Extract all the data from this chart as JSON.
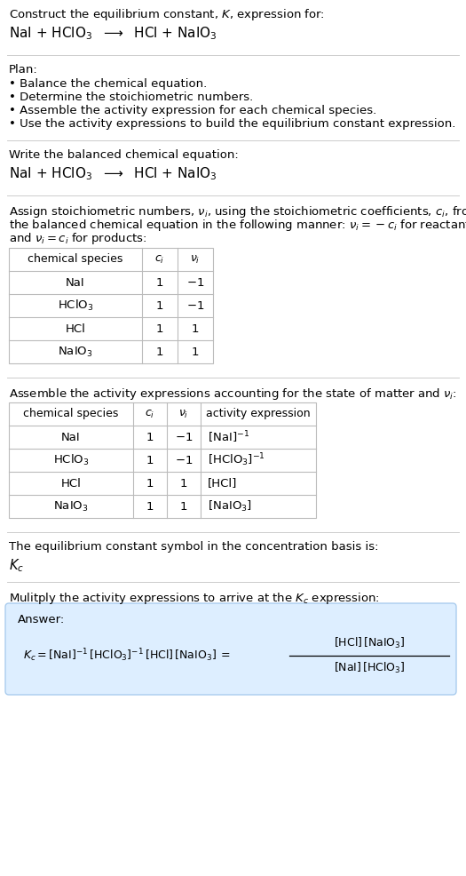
{
  "title_text": "Construct the equilibrium constant, $K$, expression for:",
  "reaction_header": "NaI + HClO$_3$  $\\longrightarrow$  HCl + NaIO$_3$",
  "plan_header": "Plan:",
  "plan_bullets": [
    "• Balance the chemical equation.",
    "• Determine the stoichiometric numbers.",
    "• Assemble the activity expression for each chemical species.",
    "• Use the activity expressions to build the equilibrium constant expression."
  ],
  "balanced_label": "Write the balanced chemical equation:",
  "balanced_eq": "NaI + HClO$_3$  $\\longrightarrow$  HCl + NaIO$_3$",
  "stoich_intro_lines": [
    "Assign stoichiometric numbers, $\\nu_i$, using the stoichiometric coefficients, $c_i$, from",
    "the balanced chemical equation in the following manner: $\\nu_i = -c_i$ for reactants",
    "and $\\nu_i = c_i$ for products:"
  ],
  "table1_headers": [
    "chemical species",
    "$c_i$",
    "$\\nu_i$"
  ],
  "table1_rows": [
    [
      "NaI",
      "1",
      "$-1$"
    ],
    [
      "HClO$_3$",
      "1",
      "$-1$"
    ],
    [
      "HCl",
      "1",
      "1"
    ],
    [
      "NaIO$_3$",
      "1",
      "1"
    ]
  ],
  "activity_intro": "Assemble the activity expressions accounting for the state of matter and $\\nu_i$:",
  "table2_headers": [
    "chemical species",
    "$c_i$",
    "$\\nu_i$",
    "activity expression"
  ],
  "table2_rows": [
    [
      "NaI",
      "1",
      "$-1$",
      "$[\\mathrm{NaI}]^{-1}$"
    ],
    [
      "HClO$_3$",
      "1",
      "$-1$",
      "$[\\mathrm{HClO_3}]^{-1}$"
    ],
    [
      "HCl",
      "1",
      "1",
      "[HCl]"
    ],
    [
      "NaIO$_3$",
      "1",
      "1",
      "$[\\mathrm{NaIO_3}]$"
    ]
  ],
  "kc_label": "The equilibrium constant symbol in the concentration basis is:",
  "kc_symbol": "$K_c$",
  "multiply_label": "Mulitply the activity expressions to arrive at the $K_c$ expression:",
  "answer_box_color": "#ddeeff",
  "answer_box_edge": "#aaccee",
  "answer_label": "Answer:",
  "bg_color": "#ffffff",
  "text_color": "#000000",
  "table_border_color": "#bbbbbb",
  "font_size": 9.5
}
